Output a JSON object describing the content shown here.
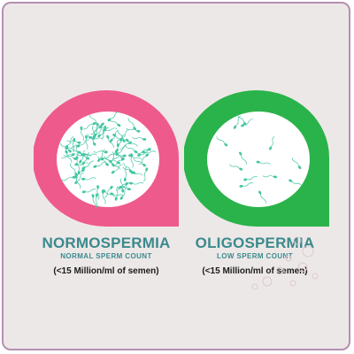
{
  "panels": [
    {
      "id": "normospermia",
      "title": "NORMOSPERMIA",
      "subtitle": "NORMAL SPERM COUNT",
      "note": "(<15 Million/ml of semen)",
      "shape_color": "#ef5a8d",
      "sperm_color": "#45c6a4",
      "sperm_count": 95
    },
    {
      "id": "oligospermia",
      "title": "OLIGOSPERMIA",
      "subtitle": "LOW SPERM COUNT",
      "note": "(<15 Million/ml of semen)",
      "shape_color": "#2ab34a",
      "sperm_color": "#45c6a4",
      "sperm_count": 14
    }
  ],
  "colors": {
    "background": "#ede8e8",
    "border": "#b58fb0",
    "title_text": "#3b8a8c",
    "dish": "#ffffff"
  }
}
